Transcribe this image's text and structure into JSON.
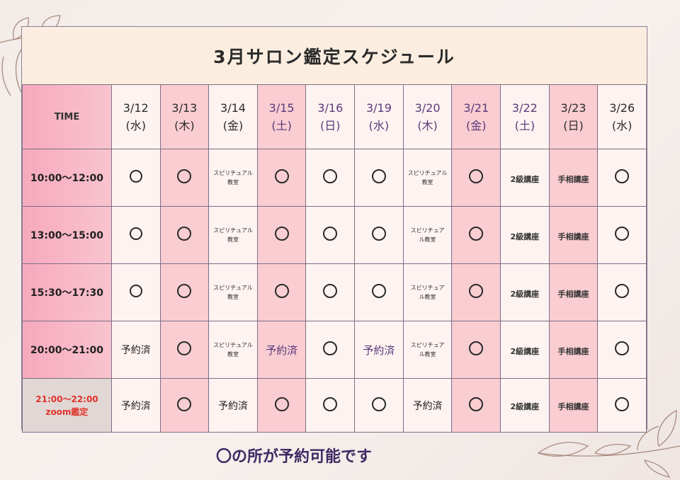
{
  "title": "3月サロン鑑定スケジュール",
  "header": {
    "time_label": "TIME",
    "dates": [
      {
        "date": "3/12",
        "day": "(水)",
        "color": "dark"
      },
      {
        "date": "3/13",
        "day": "(木)",
        "color": "dark"
      },
      {
        "date": "3/14",
        "day": "(金)",
        "color": "dark"
      },
      {
        "date": "3/15",
        "day": "(土)",
        "color": "purple"
      },
      {
        "date": "3/16",
        "day": "(日)",
        "color": "purple"
      },
      {
        "date": "3/19",
        "day": "(水)",
        "color": "purple"
      },
      {
        "date": "3/20",
        "day": "(木)",
        "color": "purple"
      },
      {
        "date": "3/21",
        "day": "(金)",
        "color": "purple"
      },
      {
        "date": "3/22",
        "day": "(土)",
        "color": "purple"
      },
      {
        "date": "3/23",
        "day": "(日)",
        "color": "dark"
      },
      {
        "date": "3/26",
        "day": "(水)",
        "color": "dark"
      }
    ]
  },
  "rows": [
    {
      "time": "10:00〜12:00",
      "cells": [
        "○",
        "○",
        "スピリチュアル|教室",
        "○",
        "○",
        "○",
        "スピリチュアル|教室",
        "○",
        "2級講座",
        "手相講座",
        "○"
      ]
    },
    {
      "time": "13:00〜15:00",
      "cells": [
        "○",
        "○",
        "スピリチュアル|教室",
        "○",
        "○",
        "○",
        "スピリチュア|ル教室",
        "○",
        "2級講座",
        "手相講座",
        "○"
      ]
    },
    {
      "time": "15:30〜17:30",
      "cells": [
        "○",
        "○",
        "スピリチュアル|教室",
        "○",
        "○",
        "○",
        "スピリチュア|ル教室",
        "○",
        "2級講座",
        "手相講座",
        "○"
      ]
    },
    {
      "time": "20:00〜21:00",
      "cells": [
        "予約済",
        "○",
        "スピリチュアル|教室",
        "予約済",
        "○",
        "予約済",
        "スピリチュア|ル教室",
        "○",
        "2級講座",
        "手相講座",
        "○"
      ]
    }
  ],
  "last_row": {
    "time_line1": "21:00〜22:00",
    "time_line2": "zoom鑑定",
    "cells": [
      "予約済",
      "○",
      "予約済",
      "○",
      "○",
      "○",
      "予約済",
      "○",
      "2級講座",
      "手相講座",
      "○"
    ]
  },
  "footer": "〇の所が予約可能です",
  "colors": {
    "pink_column": "#f9cdd2",
    "light_column": "#fdf3f1",
    "time_column": "#f6a9bd",
    "title_bg": "#fbeee0",
    "accent_purple": "#5a3a7a",
    "zoom_red": "#e0322b"
  }
}
